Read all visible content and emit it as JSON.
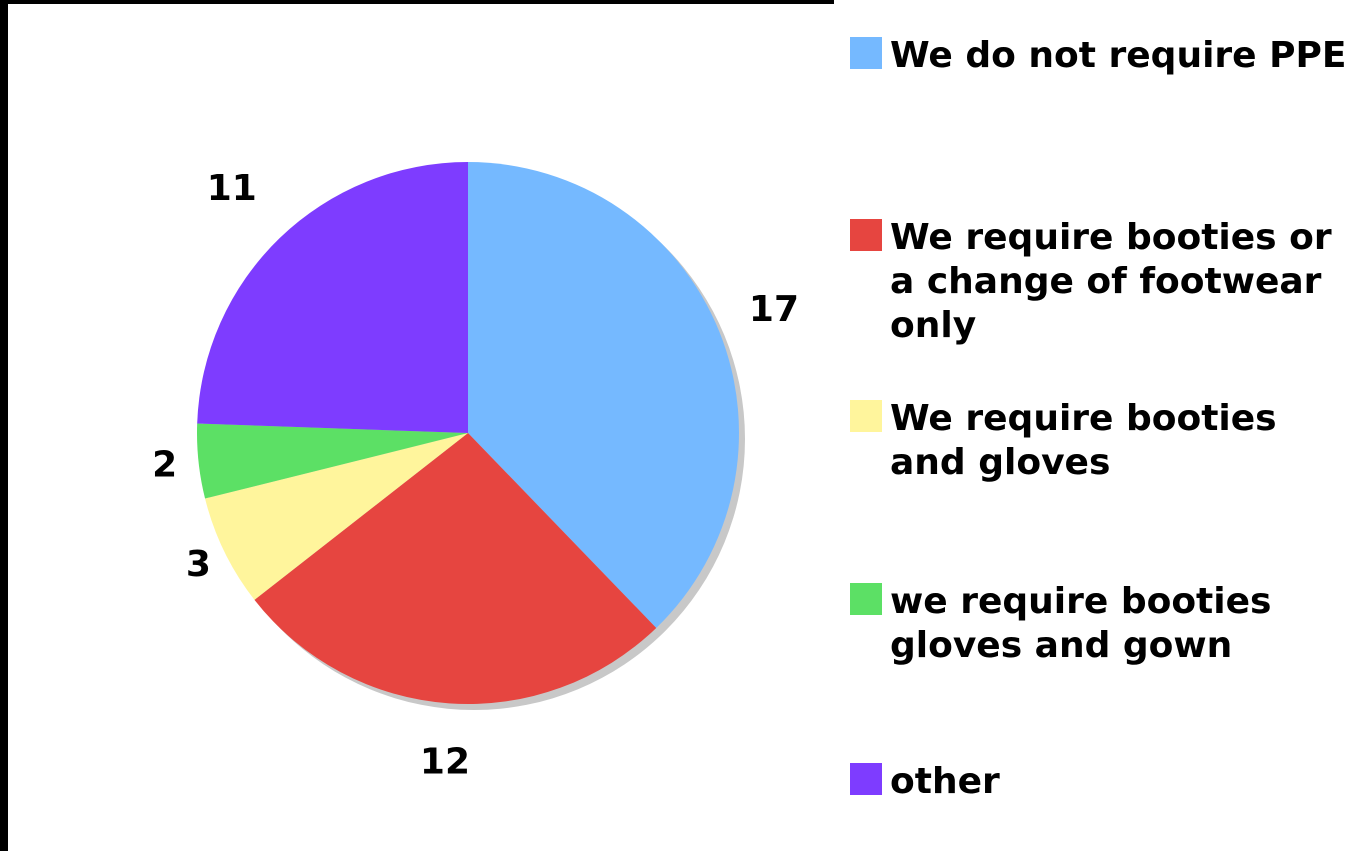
{
  "chart_data": {
    "type": "pie",
    "title": "",
    "categories": [
      "We do not require PPE",
      "We require booties or a change of footwear only",
      "We require booties and gloves",
      "we require booties gloves and gown",
      "other"
    ],
    "values": [
      17,
      12,
      3,
      2,
      11
    ],
    "data_labels": [
      "17",
      "12",
      "3",
      "2",
      "11"
    ],
    "colors": [
      "#75b9ff",
      "#e64540",
      "#fff59c",
      "#5ce065",
      "#7e3cff"
    ],
    "legend_position": "right",
    "legend": [
      {
        "label": "We do not require PPE",
        "color": "#75b9ff"
      },
      {
        "label": "We require booties or\na change of footwear\nonly",
        "color": "#e64540"
      },
      {
        "label": "We require booties\nand gloves",
        "color": "#fff59c"
      },
      {
        "label": "we require booties\ngloves and gown",
        "color": "#5ce065"
      },
      {
        "label": "other",
        "color": "#7e3cff"
      }
    ]
  }
}
